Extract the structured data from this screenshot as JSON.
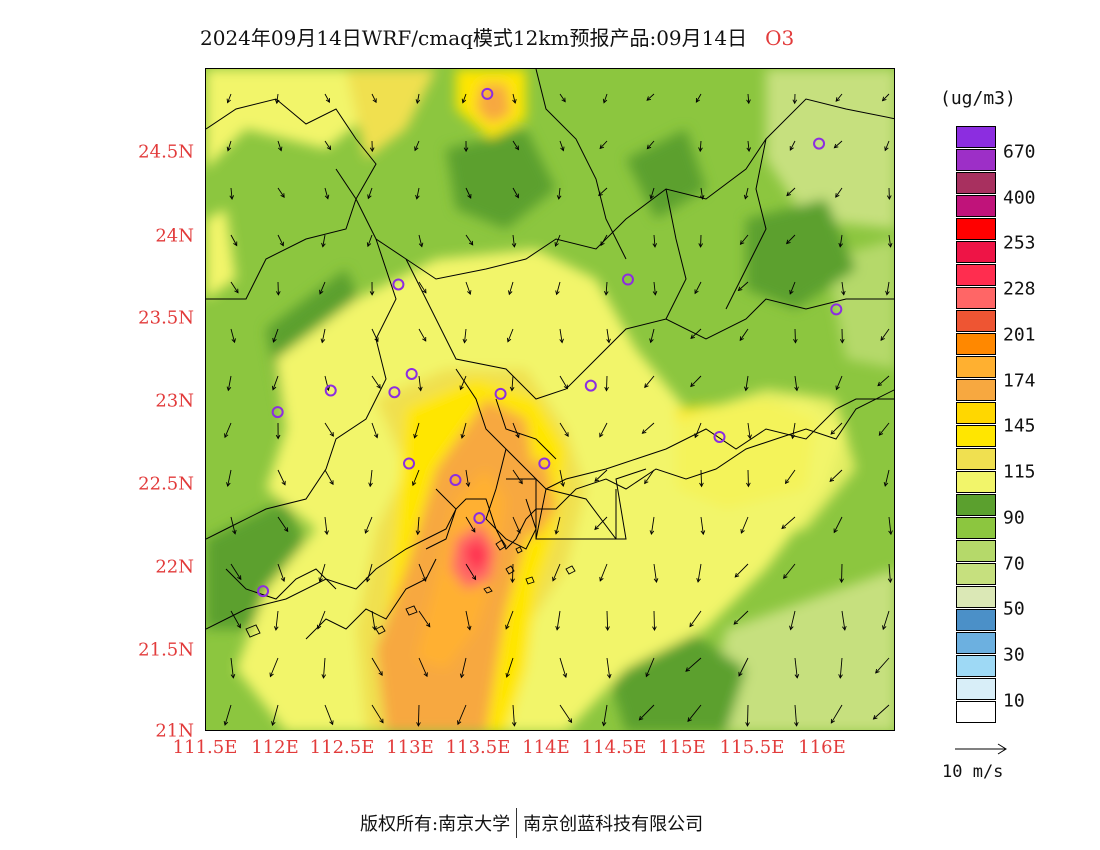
{
  "title": {
    "text": "2024年09月14日WRF/cmaq模式12km预报产品:09月14日",
    "species": "O3"
  },
  "axes": {
    "lat_ticks": [
      "24.5N",
      "24N",
      "23.5N",
      "23N",
      "22.5N",
      "22N",
      "21.5N",
      "21N"
    ],
    "lon_ticks": [
      "111.5E",
      "112E",
      "112.5E",
      "113E",
      "113.5E",
      "114E",
      "114.5E",
      "115E",
      "115.5E",
      "116E"
    ],
    "lat_range": [
      21.0,
      25.0
    ],
    "lon_range": [
      111.5,
      116.7
    ]
  },
  "legend": {
    "unit": "(ug/m3)",
    "colors": [
      "#8c2de0",
      "#9d2fc7",
      "#a8305f",
      "#c0137a",
      "#ff0000",
      "#ee1446",
      "#ff2d4f",
      "#ff6666",
      "#ee5533",
      "#ff8800",
      "#ffb030",
      "#f7a840",
      "#ffd700",
      "#ffe600",
      "#f0e050",
      "#f2f56a",
      "#5ba02e",
      "#8cc63f",
      "#b5d96a",
      "#c6e07e",
      "#dbe8b6",
      "#4b90c8",
      "#6cb0e0",
      "#9ed9f5",
      "#d8eef8",
      "#ffffff"
    ],
    "ticks": [
      "670",
      "400",
      "253",
      "228",
      "201",
      "174",
      "145",
      "115",
      "90",
      "70",
      "50",
      "30",
      "10"
    ]
  },
  "wind_reference": {
    "label": "10 m/s"
  },
  "footer": {
    "left": "版权所有:南京大学",
    "right": "南京创蓝科技有限公司"
  },
  "stations": [
    {
      "lon": 113.62,
      "lat": 24.85
    },
    {
      "lon": 116.12,
      "lat": 24.55
    },
    {
      "lon": 112.95,
      "lat": 23.7
    },
    {
      "lon": 114.68,
      "lat": 23.73
    },
    {
      "lon": 116.25,
      "lat": 23.55
    },
    {
      "lon": 113.05,
      "lat": 23.16
    },
    {
      "lon": 112.92,
      "lat": 23.05
    },
    {
      "lon": 113.72,
      "lat": 23.04
    },
    {
      "lon": 114.4,
      "lat": 23.09
    },
    {
      "lon": 112.44,
      "lat": 23.06
    },
    {
      "lon": 112.04,
      "lat": 22.93
    },
    {
      "lon": 115.37,
      "lat": 22.78
    },
    {
      "lon": 113.03,
      "lat": 22.62
    },
    {
      "lon": 114.05,
      "lat": 22.62
    },
    {
      "lon": 113.38,
      "lat": 22.52
    },
    {
      "lon": 113.56,
      "lat": 22.29
    },
    {
      "lon": 111.93,
      "lat": 21.85
    }
  ]
}
